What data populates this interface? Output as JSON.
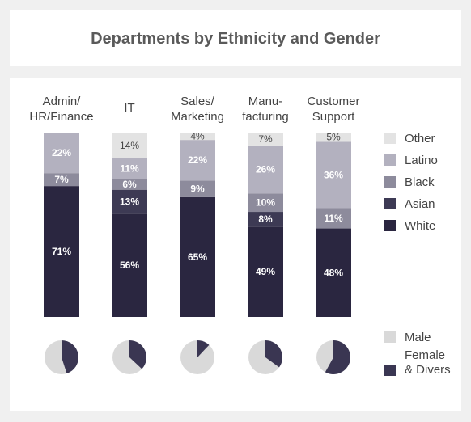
{
  "title": "Departments by Ethnicity and Gender",
  "chart_data": [
    {
      "type": "bar",
      "stacked": true,
      "normalized": true,
      "categories": [
        "Admin/\nHR/Finance",
        "IT",
        "Sales/\nMarketing",
        "Manu-\nfacturing",
        "Customer\nSupport"
      ],
      "series": [
        {
          "name": "White",
          "color": "#2a2640",
          "values": [
            71,
            56,
            65,
            49,
            48
          ]
        },
        {
          "name": "Asian",
          "color": "#3d3a54",
          "values": [
            0,
            13,
            0,
            8,
            0
          ]
        },
        {
          "name": "Black",
          "color": "#8d8b9c",
          "values": [
            7,
            6,
            9,
            10,
            11
          ]
        },
        {
          "name": "Latino",
          "color": "#b3b1bf",
          "values": [
            22,
            11,
            22,
            26,
            36
          ]
        },
        {
          "name": "Other",
          "color": "#e3e3e3",
          "values": [
            0,
            14,
            4,
            7,
            5
          ]
        }
      ],
      "data_labels": [
        [
          "71%",
          "",
          "7%",
          "22%",
          ""
        ],
        [
          "56%",
          "13%",
          "6%",
          "11%",
          "14%"
        ],
        [
          "65%",
          "",
          "9%",
          "22%",
          "4%"
        ],
        [
          "49%",
          "8%",
          "10%",
          "26%",
          "7%"
        ],
        [
          "48%",
          "",
          "11%",
          "36%",
          "5%"
        ]
      ],
      "legend": [
        "Other",
        "Latino",
        "Black",
        "Asian",
        "White"
      ],
      "legend_position": "right"
    },
    {
      "type": "pie",
      "categories": [
        "Admin/\nHR/Finance",
        "IT",
        "Sales/\nMarketing",
        "Manu-\nfacturing",
        "Customer\nSupport"
      ],
      "series": [
        {
          "name": "Male",
          "color": "#d9d9d9",
          "values": [
            55,
            63,
            88,
            65,
            42
          ]
        },
        {
          "name": "Female\n& Divers",
          "color": "#3a3652",
          "values": [
            45,
            37,
            12,
            35,
            58
          ]
        }
      ],
      "legend": [
        "Male",
        "Female\n& Divers"
      ],
      "legend_position": "right"
    }
  ]
}
